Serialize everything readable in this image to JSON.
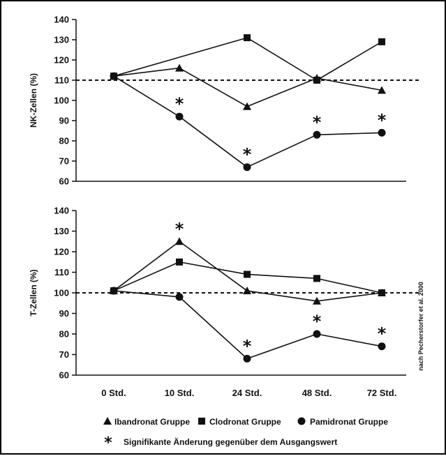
{
  "colors": {
    "background": "#ffffff",
    "ink": "#111111",
    "frame": "#000000"
  },
  "chart_data": [
    {
      "type": "line",
      "categories": [
        "0 Std.",
        "10 Std.",
        "24 Std.",
        "48 Std.",
        "72 Std."
      ],
      "ylabel": "NK-Zellen (%)",
      "ylim": [
        60,
        140
      ],
      "yticks": [
        60,
        70,
        80,
        90,
        100,
        110,
        120,
        130,
        140
      ],
      "reference_line": 110,
      "show_category_labels": false,
      "series": [
        {
          "name": "Ibandronat Gruppe",
          "marker": "triangle",
          "values": [
            112,
            116,
            97,
            111,
            105
          ]
        },
        {
          "name": "Clodronat Gruppe",
          "marker": "square",
          "values": [
            112,
            null,
            131,
            110,
            129
          ]
        },
        {
          "name": "Pamidronat Gruppe",
          "marker": "circle",
          "values": [
            112,
            92,
            67,
            83,
            84
          ],
          "significant": [
            false,
            true,
            true,
            true,
            true
          ]
        }
      ]
    },
    {
      "type": "line",
      "categories": [
        "0 Std.",
        "10 Std.",
        "24 Std.",
        "48 Std.",
        "72 Std."
      ],
      "ylabel": "T-Zellen (%)",
      "ylim": [
        60,
        140
      ],
      "yticks": [
        60,
        70,
        80,
        90,
        100,
        110,
        120,
        130,
        140
      ],
      "reference_line": 100,
      "show_category_labels": true,
      "series": [
        {
          "name": "Ibandronat Gruppe",
          "marker": "triangle",
          "values": [
            101,
            125,
            101,
            96,
            100
          ],
          "significant": [
            false,
            true,
            false,
            false,
            false
          ]
        },
        {
          "name": "Clodronat Gruppe",
          "marker": "square",
          "values": [
            101,
            115,
            109,
            107,
            100
          ]
        },
        {
          "name": "Pamidronat Gruppe",
          "marker": "circle",
          "values": [
            101,
            98,
            68,
            80,
            74
          ],
          "significant": [
            false,
            false,
            true,
            true,
            true
          ]
        }
      ]
    }
  ],
  "legend": {
    "items": [
      {
        "marker": "triangle",
        "label": "Ibandronat Gruppe"
      },
      {
        "marker": "square",
        "label": "Clodronat Gruppe"
      },
      {
        "marker": "circle",
        "label": "Pamidronat Gruppe"
      }
    ],
    "significance_symbol": "*",
    "significance_label": "Signifikante Änderung gegenüber dem Ausgangswert"
  },
  "credit": "nach Pecherstorfer et al. 2000"
}
